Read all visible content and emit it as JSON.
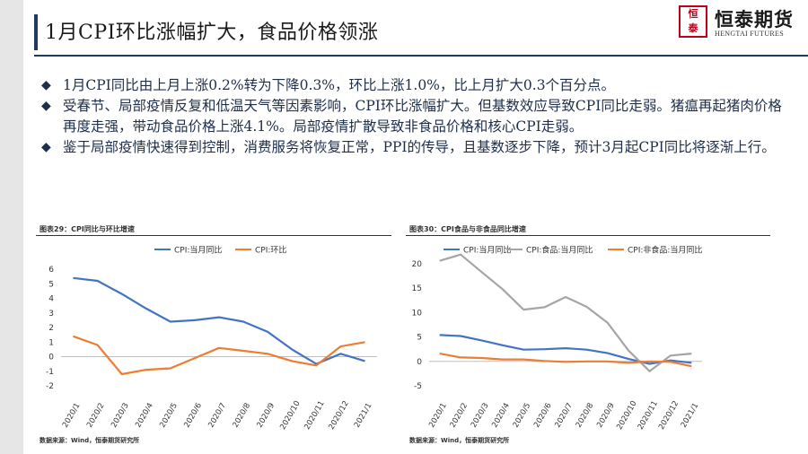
{
  "page": {
    "title": "1月CPI环比涨幅扩大，食品价格领涨",
    "logo": {
      "mark": "恒泰",
      "name_cn": "恒泰期货",
      "name_en": "HENGTAI FUTURES"
    },
    "bullets": [
      "1月CPI同比由上月上涨0.2%转为下降0.3%，环比上涨1.0%，比上月扩大0.3个百分点。",
      "受春节、局部疫情反复和低温天气等因素影响，CPI环比涨幅扩大。但基数效应导致CPI同比走弱。猪瘟再起猪肉价格再度走强，带动食品价格上涨4.1%。局部疫情扩散导致非食品价格和核心CPI走弱。",
      " 鉴于局部疫情快速得到控制，消费服务将恢复正常，PPI的传导，且基数逐步下降，预计3月起CPI同比将逐渐上行。"
    ],
    "bullet_icon": "diamond-bullet-icon",
    "colors": {
      "navy": "#1f3864",
      "blue": "#4472c4",
      "orange": "#ed7d31",
      "gray": "#a5a5a5",
      "brand_red": "#c0001b"
    }
  },
  "chart_data": [
    {
      "type": "line",
      "title": "图表29：CPI同比与环比增速",
      "source": "数据来源：Wind，恒泰期货研究所",
      "categories": [
        "2020/1",
        "2020/2",
        "2020/3",
        "2020/4",
        "2020/5",
        "2020/6",
        "2020/7",
        "2020/8",
        "2020/9",
        "2020/10",
        "2020/11",
        "2020/12",
        "2021/1"
      ],
      "ylim": [
        -2,
        6
      ],
      "yticks": [
        -2,
        -1,
        0,
        1,
        2,
        3,
        4,
        5,
        6
      ],
      "legend_position": "top",
      "series": [
        {
          "name": "CPI:当月同比",
          "color": "#4472c4",
          "values": [
            5.4,
            5.2,
            4.3,
            3.3,
            2.4,
            2.5,
            2.7,
            2.4,
            1.7,
            0.5,
            -0.5,
            0.2,
            -0.3
          ]
        },
        {
          "name": "CPI:环比",
          "color": "#ed7d31",
          "values": [
            1.4,
            0.8,
            -1.2,
            -0.9,
            -0.8,
            -0.1,
            0.6,
            0.4,
            0.2,
            -0.3,
            -0.6,
            0.7,
            1.0
          ]
        }
      ]
    },
    {
      "type": "line",
      "title": "图表30：CPI食品与非食品同比增速",
      "source": "数据来源：Wind，恒泰期货研究所",
      "categories": [
        "2020/1",
        "2020/2",
        "2020/3",
        "2020/4",
        "2020/5",
        "2020/6",
        "2020/7",
        "2020/8",
        "2020/9",
        "2020/10",
        "2020/11",
        "2020/12",
        "2021/1"
      ],
      "ylim": [
        -5,
        20
      ],
      "yticks": [
        -5,
        0,
        5,
        10,
        15,
        20
      ],
      "legend_position": "top",
      "series": [
        {
          "name": "CPI:当月同比",
          "color": "#4472c4",
          "values": [
            5.4,
            5.2,
            4.3,
            3.3,
            2.4,
            2.5,
            2.7,
            2.4,
            1.7,
            0.5,
            -0.5,
            0.2,
            -0.3
          ]
        },
        {
          "name": "CPI:食品:当月同比",
          "color": "#a5a5a5",
          "values": [
            20.6,
            21.9,
            18.3,
            14.8,
            10.6,
            11.1,
            13.2,
            11.2,
            7.9,
            2.2,
            -2.0,
            1.2,
            1.6
          ]
        },
        {
          "name": "CPI:非食品:当月同比",
          "color": "#ed7d31",
          "values": [
            1.6,
            0.8,
            0.7,
            0.4,
            0.4,
            0.1,
            -0.1,
            0.0,
            0.0,
            -0.3,
            0.0,
            -0.1,
            -1.0
          ]
        }
      ]
    }
  ]
}
